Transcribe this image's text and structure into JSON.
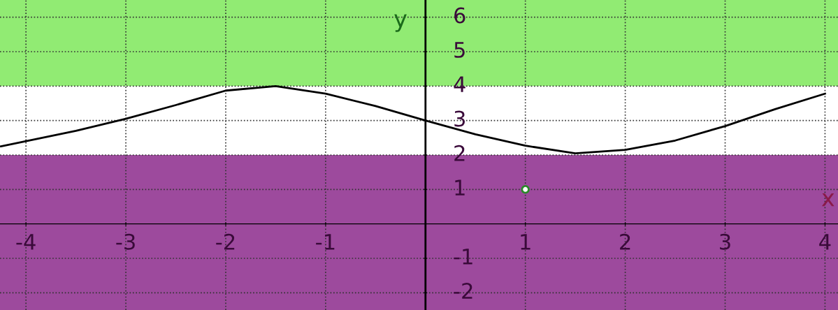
{
  "chart_data": {
    "type": "line",
    "xlabel": "x",
    "ylabel": "y",
    "x": [
      -4.25,
      -3.5,
      -3,
      -2.5,
      -2,
      -1.5,
      -1,
      -0.5,
      0,
      0.5,
      1,
      1.5,
      2,
      2.5,
      3,
      3.5,
      4
    ],
    "series": [
      {
        "color": "#000000",
        "values": [
          2.25,
          2.7,
          3.05,
          3.45,
          3.87,
          4.0,
          3.78,
          3.42,
          3.0,
          2.6,
          2.27,
          2.05,
          2.15,
          2.42,
          2.84,
          3.33,
          3.78
        ]
      },
      {
        "type": "scatter",
        "color": "#2a8a2a",
        "x": [
          1
        ],
        "values": [
          1
        ],
        "marker": "circle"
      }
    ],
    "bands": [
      {
        "axis": "y",
        "from": 4,
        "to": 6.5,
        "color": "#7ee85a"
      },
      {
        "axis": "y",
        "from": -2.5,
        "to": 2,
        "color": "#8c2a8c"
      }
    ],
    "xlim": [
      -4.26,
      4.13
    ],
    "ylim": [
      -2.5,
      6.5
    ],
    "xticks": [
      -4,
      -3,
      -2,
      -1,
      1,
      2,
      3,
      4
    ],
    "yticks": [
      -2,
      -1,
      1,
      2,
      3,
      4,
      5,
      6
    ],
    "grid": true
  }
}
